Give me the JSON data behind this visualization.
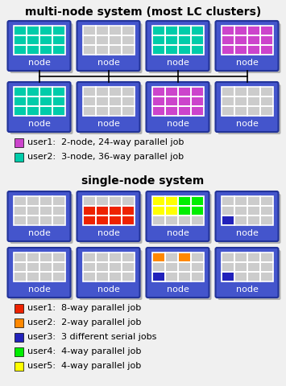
{
  "title_multi": "multi-node system (most LC clusters)",
  "title_single": "single-node system",
  "bg_color": "#f0f0f0",
  "node_bg": "#4455cc",
  "node_edge": "#223399",
  "node_text_color": "white",
  "grid_bg": "#cccccc",
  "grid_line": "#ffffff",
  "shadow_color": "#888888",
  "cyan": "#00ccaa",
  "magenta": "#cc44cc",
  "red": "#ee2200",
  "orange": "#ff8800",
  "blue": "#2222bb",
  "green": "#00ee00",
  "yellow": "#ffff00",
  "legend_multi": [
    {
      "color": "#cc44cc",
      "text": "user1:  2-node, 24-way parallel job"
    },
    {
      "color": "#00ccaa",
      "text": "user2:  3-node, 36-way parallel job"
    }
  ],
  "legend_single": [
    {
      "color": "#ee2200",
      "text": "user1:  8-way parallel job"
    },
    {
      "color": "#ff8800",
      "text": "user2:  2-way parallel job"
    },
    {
      "color": "#2222bb",
      "text": "user3:  3 different serial jobs"
    },
    {
      "color": "#00ee00",
      "text": "user4:  4-way parallel job"
    },
    {
      "color": "#ffff00",
      "text": "user5:  4-way parallel job"
    }
  ],
  "figw": 3.55,
  "figh": 4.8,
  "dpi": 100
}
